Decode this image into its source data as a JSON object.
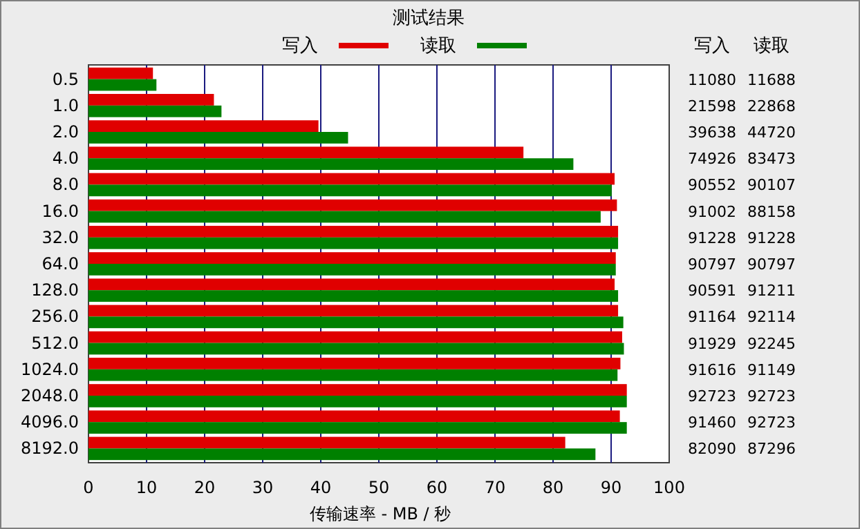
{
  "chart_data": {
    "type": "bar",
    "orientation": "horizontal",
    "title": "测试结果",
    "xlabel": "传输速率 - MB / 秒",
    "categories": [
      "0.5",
      "1.0",
      "2.0",
      "4.0",
      "8.0",
      "16.0",
      "32.0",
      "64.0",
      "128.0",
      "256.0",
      "512.0",
      "1024.0",
      "2048.0",
      "4096.0",
      "8192.0"
    ],
    "series": [
      {
        "name": "写入",
        "color": "#e00000",
        "values": [
          11.1,
          21.6,
          39.6,
          74.9,
          90.6,
          91.0,
          91.2,
          90.8,
          90.6,
          91.2,
          91.9,
          91.6,
          92.7,
          91.5,
          82.1
        ]
      },
      {
        "name": "读取",
        "color": "#008000",
        "values": [
          11.7,
          22.9,
          44.7,
          83.5,
          90.1,
          88.2,
          91.2,
          90.8,
          91.2,
          92.1,
          92.2,
          91.1,
          92.7,
          92.7,
          87.3
        ]
      }
    ],
    "annotations": [
      "11080",
      "11688",
      "21598",
      "22868",
      "39638",
      "44720",
      "74926",
      "83473",
      "90552",
      "90107",
      "91002",
      "88158",
      "91228",
      "91228",
      "90797",
      "90797",
      "90591",
      "91211",
      "91164",
      "92114",
      "91929",
      "92245",
      "91616",
      "91149",
      "92723",
      "92723",
      "91460",
      "92723",
      "82090",
      "87296"
    ],
    "xlim": [
      0,
      100
    ],
    "xticks": [
      0,
      10,
      20,
      30,
      40,
      50,
      60,
      70,
      80,
      90,
      100
    ],
    "grid": "x",
    "legend": "top"
  }
}
